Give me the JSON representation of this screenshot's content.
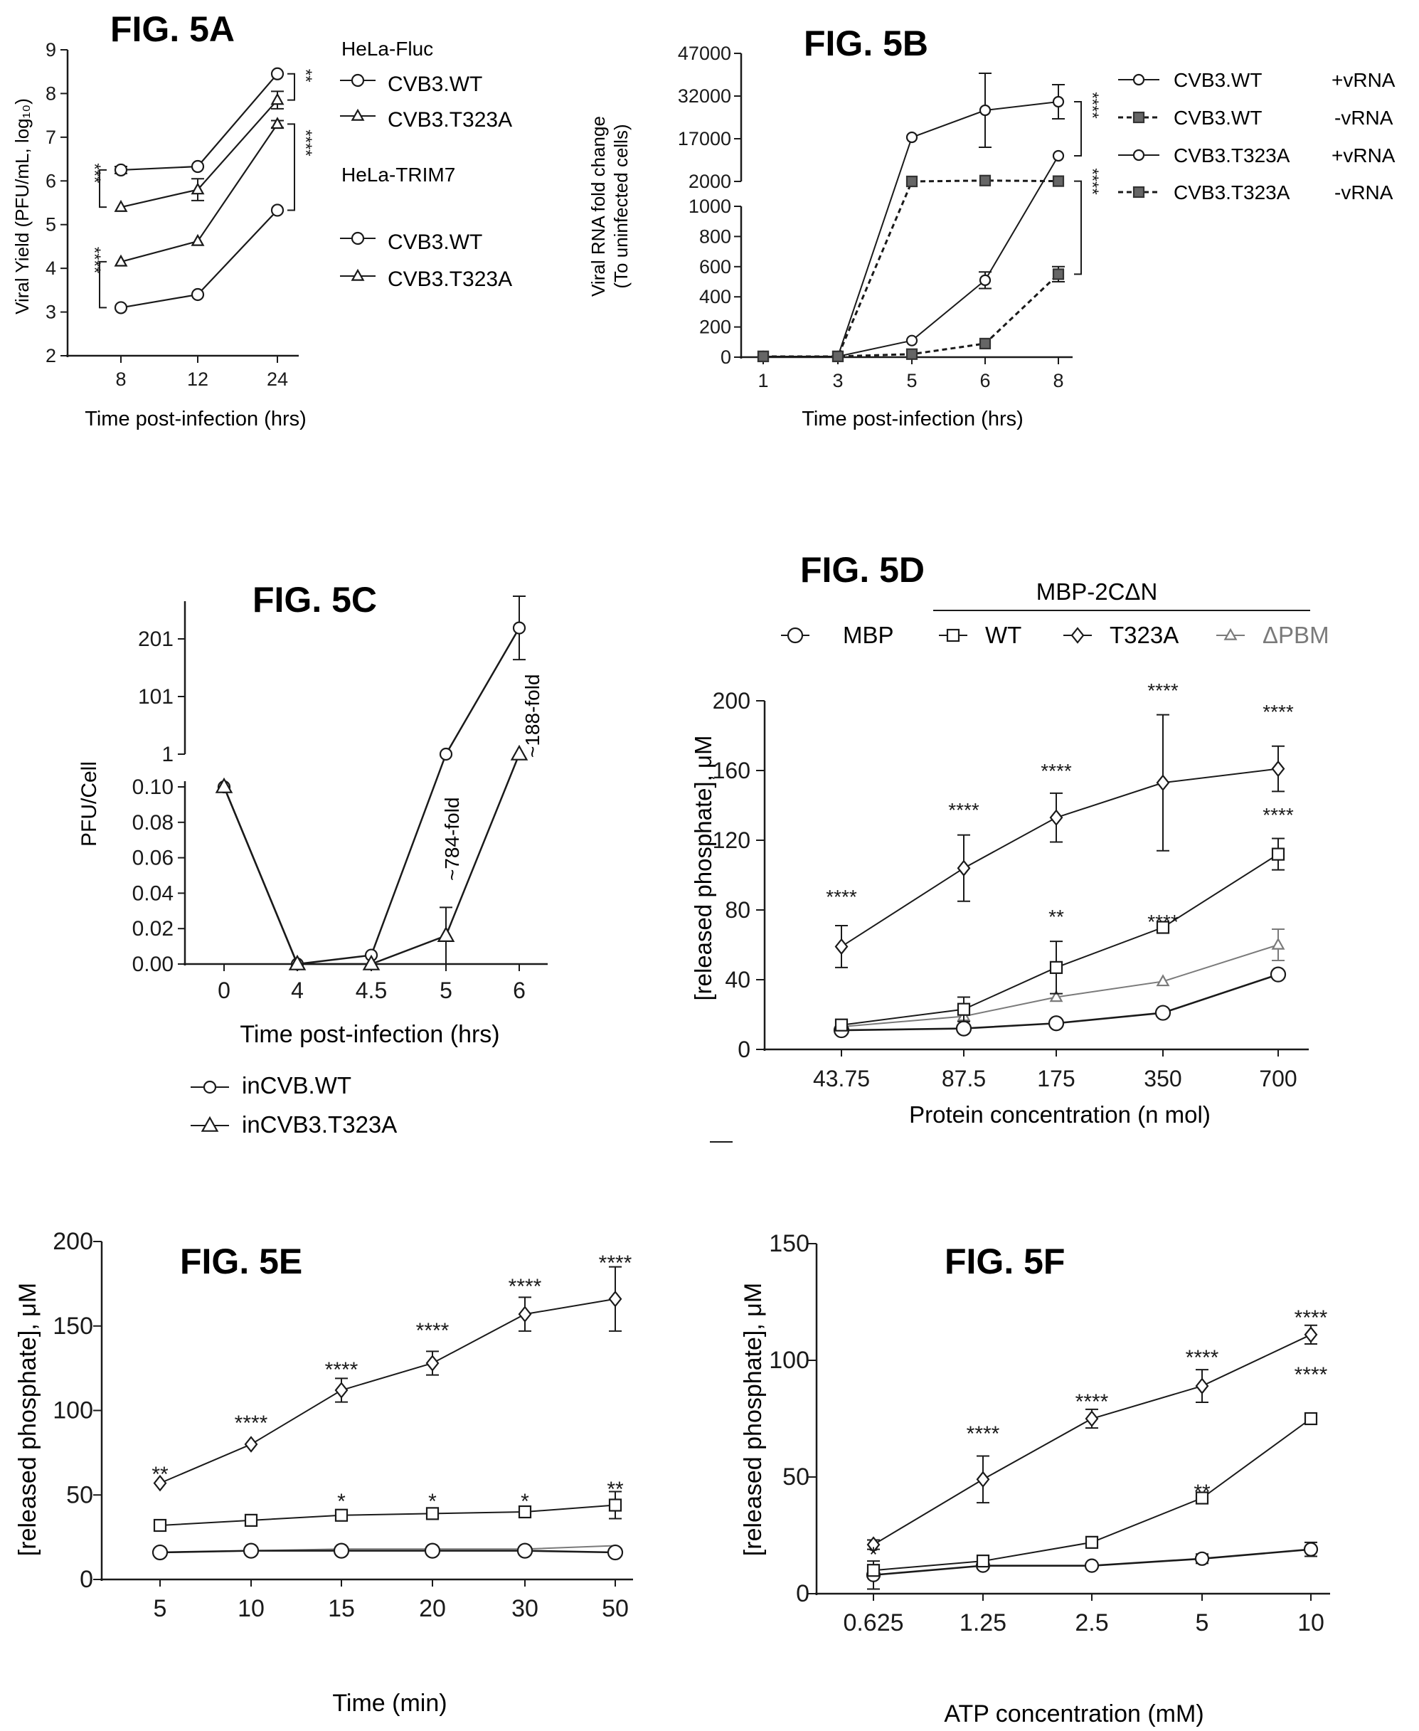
{
  "page": {
    "background": "#ffffff",
    "ink": "#1a1a1a",
    "gray_series": "#7a7a7a",
    "gray_fill": "#666666"
  },
  "chart_data": [
    {
      "id": "5A",
      "type": "line",
      "title": "FIG. 5A",
      "xlabel": "Time post-infection (hrs)",
      "ylabel": "Viral Yield (PFU/mL, log₁₀)",
      "categories": [
        "8",
        "12",
        "24"
      ],
      "ylim": [
        2,
        9
      ],
      "yticks": [
        "2",
        "3",
        "4",
        "5",
        "6",
        "7",
        "8",
        "9"
      ],
      "legend_groups": [
        "HeLa-Fluc",
        "HeLa-TRIM7"
      ],
      "series": [
        {
          "name": "CVB3.WT",
          "group": "HeLa-Fluc",
          "marker": "circle",
          "values": [
            6.25,
            6.33,
            8.45
          ],
          "err": [
            0.08,
            0.05,
            0.05
          ]
        },
        {
          "name": "CVB3.T323A",
          "group": "HeLa-Fluc",
          "marker": "triangle",
          "values": [
            5.4,
            5.8,
            7.85
          ],
          "err": [
            0.06,
            0.25,
            0.2
          ]
        },
        {
          "name": "CVB3.WT",
          "group": "HeLa-TRIM7",
          "marker": "circle",
          "values": [
            3.1,
            3.4,
            5.33
          ],
          "err": [
            0.04,
            0.05,
            0.05
          ]
        },
        {
          "name": "CVB3.T323A",
          "group": "HeLa-TRIM7",
          "marker": "triangle",
          "values": [
            4.15,
            4.62,
            7.3
          ],
          "err": [
            0.06,
            0.05,
            0.08
          ]
        }
      ],
      "significance": [
        "**",
        "***",
        "****",
        "****"
      ]
    },
    {
      "id": "5B",
      "type": "line",
      "title": "FIG. 5B",
      "xlabel": "Time post-infection (hrs)",
      "ylabel": "Viral RNA fold change",
      "ylabel2": "(To uninfected cells)",
      "categories": [
        "1",
        "3",
        "5",
        "6",
        "8"
      ],
      "yticks_lower": [
        "0",
        "200",
        "400",
        "600",
        "800",
        "1000"
      ],
      "yticks_upper": [
        "2000",
        "17000",
        "32000",
        "47000"
      ],
      "series": [
        {
          "name": "CVB3.WT",
          "tag": "+vRNA",
          "marker": "circle",
          "style": "solid",
          "values": [
            5,
            5,
            17500,
            27000,
            30000
          ],
          "err": [
            0,
            0,
            0,
            13000,
            6000
          ]
        },
        {
          "name": "CVB3.WT",
          "tag": "-vRNA",
          "marker": "square",
          "style": "dashed",
          "values": [
            5,
            5,
            2000,
            2300,
            2100
          ],
          "err": [
            0,
            0,
            0,
            0,
            0
          ]
        },
        {
          "name": "CVB3.T323A",
          "tag": "+vRNA",
          "marker": "circle",
          "style": "solid",
          "values": [
            5,
            5,
            110,
            510,
            11000
          ],
          "err": [
            0,
            0,
            0,
            55,
            0
          ]
        },
        {
          "name": "CVB3.T323A",
          "tag": "-vRNA",
          "marker": "square",
          "style": "dashed",
          "values": [
            5,
            5,
            20,
            90,
            550
          ],
          "err": [
            0,
            0,
            0,
            0,
            50
          ]
        }
      ],
      "significance": [
        "****",
        "****"
      ]
    },
    {
      "id": "5C",
      "type": "line",
      "title": "FIG. 5C",
      "xlabel": "Time post-infection (hrs)",
      "ylabel": "PFU/Cell",
      "categories": [
        "0",
        "4",
        "4.5",
        "5",
        "6"
      ],
      "yticks_lower": [
        "0.00",
        "0.02",
        "0.04",
        "0.06",
        "0.08",
        "0.10"
      ],
      "yticks_upper": [
        "1",
        "101",
        "201"
      ],
      "series": [
        {
          "name": "inCVB.WT",
          "marker": "circle",
          "values": [
            0.1,
            0.0,
            0.005,
            1.0,
            220.0
          ],
          "err": [
            0,
            0,
            0,
            0,
            55
          ]
        },
        {
          "name": "inCVB3.T323A",
          "marker": "triangle",
          "values": [
            0.1,
            0.0,
            0.0,
            0.016,
            1.0
          ],
          "err": [
            0,
            0,
            0,
            0.016,
            0
          ]
        }
      ],
      "annotations": [
        "~784-fold",
        "~188-fold"
      ]
    },
    {
      "id": "5D",
      "type": "line",
      "title": "FIG. 5D",
      "xlabel": "Protein concentration (n mol)",
      "ylabel": "[released phosphate], μM",
      "group_label": "MBP-2CΔN",
      "categories": [
        "43.75",
        "87.5",
        "175",
        "350",
        "700"
      ],
      "ylim": [
        0,
        200
      ],
      "yticks": [
        "0",
        "40",
        "80",
        "120",
        "160",
        "200"
      ],
      "series": [
        {
          "name": "MBP",
          "marker": "circle",
          "color": "ink",
          "values": [
            11,
            12,
            15,
            21,
            43
          ],
          "err": [
            0,
            0,
            0,
            0,
            0
          ]
        },
        {
          "name": "WT",
          "marker": "square",
          "color": "ink",
          "values": [
            14,
            23,
            47,
            70,
            112
          ],
          "err": [
            0,
            7,
            15,
            0,
            9
          ]
        },
        {
          "name": "T323A",
          "marker": "diamond",
          "color": "ink",
          "values": [
            59,
            104,
            133,
            153,
            161
          ],
          "err": [
            12,
            19,
            14,
            39,
            13
          ]
        },
        {
          "name": "ΔPBM",
          "marker": "triangle",
          "color": "gray",
          "values": [
            13,
            19,
            30,
            39,
            60
          ],
          "err": [
            0,
            0,
            0,
            0,
            9
          ]
        }
      ],
      "significance": [
        "****",
        "****",
        "****",
        "****",
        "****",
        "**",
        "****",
        "****"
      ]
    },
    {
      "id": "5E",
      "type": "line",
      "title": "FIG. 5E",
      "xlabel": "Time (min)",
      "ylabel": "[released phosphate], μM",
      "categories": [
        "5",
        "10",
        "15",
        "20",
        "30",
        "50"
      ],
      "ylim": [
        0,
        200
      ],
      "yticks": [
        "0",
        "50",
        "100",
        "150",
        "200"
      ],
      "series": [
        {
          "name": "circle",
          "marker": "circle",
          "values": [
            16,
            17,
            17,
            17,
            17,
            16
          ],
          "err": [
            0,
            0,
            0,
            0,
            0,
            0
          ]
        },
        {
          "name": "square",
          "marker": "square",
          "values": [
            32,
            35,
            38,
            39,
            40,
            44
          ],
          "err": [
            0,
            0,
            0,
            0,
            0,
            8
          ]
        },
        {
          "name": "diamond",
          "marker": "diamond",
          "values": [
            57,
            80,
            112,
            128,
            157,
            166
          ],
          "err": [
            0,
            0,
            7,
            7,
            10,
            19
          ]
        },
        {
          "name": "gray",
          "marker": "triangle",
          "values": [
            16,
            17,
            18,
            18,
            18,
            20
          ],
          "err": [
            0,
            0,
            0,
            0,
            0,
            0
          ]
        }
      ],
      "significance": [
        "**",
        "****",
        "****",
        "****",
        "****",
        "****",
        "*",
        "*",
        "*",
        "**"
      ]
    },
    {
      "id": "5F",
      "type": "line",
      "title": "FIG. 5F",
      "xlabel": "ATP concentration (mM)",
      "ylabel": "[released phosphate], μM",
      "categories": [
        "0.625",
        "1.25",
        "2.5",
        "5",
        "10"
      ],
      "ylim": [
        0,
        150
      ],
      "yticks": [
        "0",
        "50",
        "100",
        "150"
      ],
      "series": [
        {
          "name": "circle",
          "marker": "circle",
          "values": [
            8,
            12,
            12,
            15,
            19
          ],
          "err": [
            6,
            0,
            0,
            2,
            3
          ]
        },
        {
          "name": "square",
          "marker": "square",
          "values": [
            10,
            14,
            22,
            41,
            75
          ],
          "err": [
            0,
            0,
            0,
            0,
            0
          ]
        },
        {
          "name": "diamond",
          "marker": "diamond",
          "values": [
            21,
            49,
            75,
            89,
            111
          ],
          "err": [
            2,
            10,
            4,
            7,
            4
          ]
        }
      ],
      "significance": [
        "*",
        "****",
        "****",
        "****",
        "****",
        "**",
        "****"
      ]
    }
  ]
}
